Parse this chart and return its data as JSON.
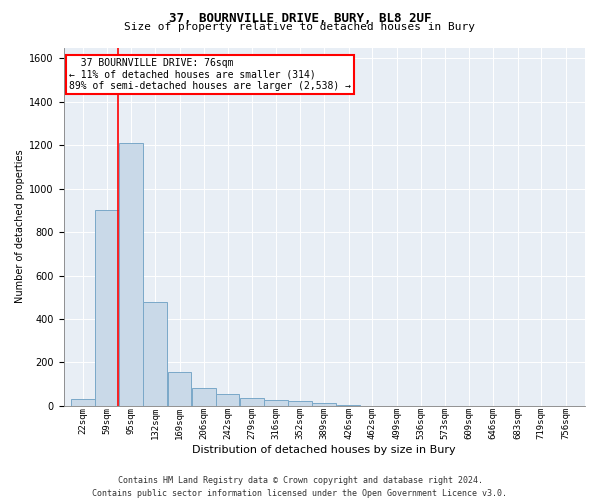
{
  "title": "37, BOURNVILLE DRIVE, BURY, BL8 2UF",
  "subtitle": "Size of property relative to detached houses in Bury",
  "xlabel": "Distribution of detached houses by size in Bury",
  "ylabel": "Number of detached properties",
  "footer_line1": "Contains HM Land Registry data © Crown copyright and database right 2024.",
  "footer_line2": "Contains public sector information licensed under the Open Government Licence v3.0.",
  "annotation_line1": "  37 BOURNVILLE DRIVE: 76sqm  ",
  "annotation_line2": "← 11% of detached houses are smaller (314)",
  "annotation_line3": "89% of semi-detached houses are larger (2,538) →",
  "bar_color": "#c9d9e8",
  "bar_edge_color": "#7aa8c8",
  "background_color": "#e8eef5",
  "redline_x": 76,
  "categories": [
    22,
    59,
    95,
    132,
    169,
    206,
    242,
    279,
    316,
    352,
    389,
    426,
    462,
    499,
    536,
    573,
    609,
    646,
    683,
    719,
    756
  ],
  "cat_labels": [
    "22sqm",
    "59sqm",
    "95sqm",
    "132sqm",
    "169sqm",
    "206sqm",
    "242sqm",
    "279sqm",
    "316sqm",
    "352sqm",
    "389sqm",
    "426sqm",
    "462sqm",
    "499sqm",
    "536sqm",
    "573sqm",
    "609sqm",
    "646sqm",
    "683sqm",
    "719sqm",
    "756sqm"
  ],
  "values": [
    30,
    900,
    1210,
    480,
    155,
    80,
    55,
    35,
    25,
    20,
    15,
    5,
    0,
    0,
    0,
    0,
    0,
    0,
    0,
    0,
    0
  ],
  "ylim": [
    0,
    1650
  ],
  "yticks": [
    0,
    200,
    400,
    600,
    800,
    1000,
    1200,
    1400,
    1600
  ],
  "title_fontsize": 9,
  "subtitle_fontsize": 8,
  "xlabel_fontsize": 8,
  "ylabel_fontsize": 7,
  "xtick_fontsize": 6.5,
  "ytick_fontsize": 7,
  "footer_fontsize": 6,
  "annotation_fontsize": 7
}
